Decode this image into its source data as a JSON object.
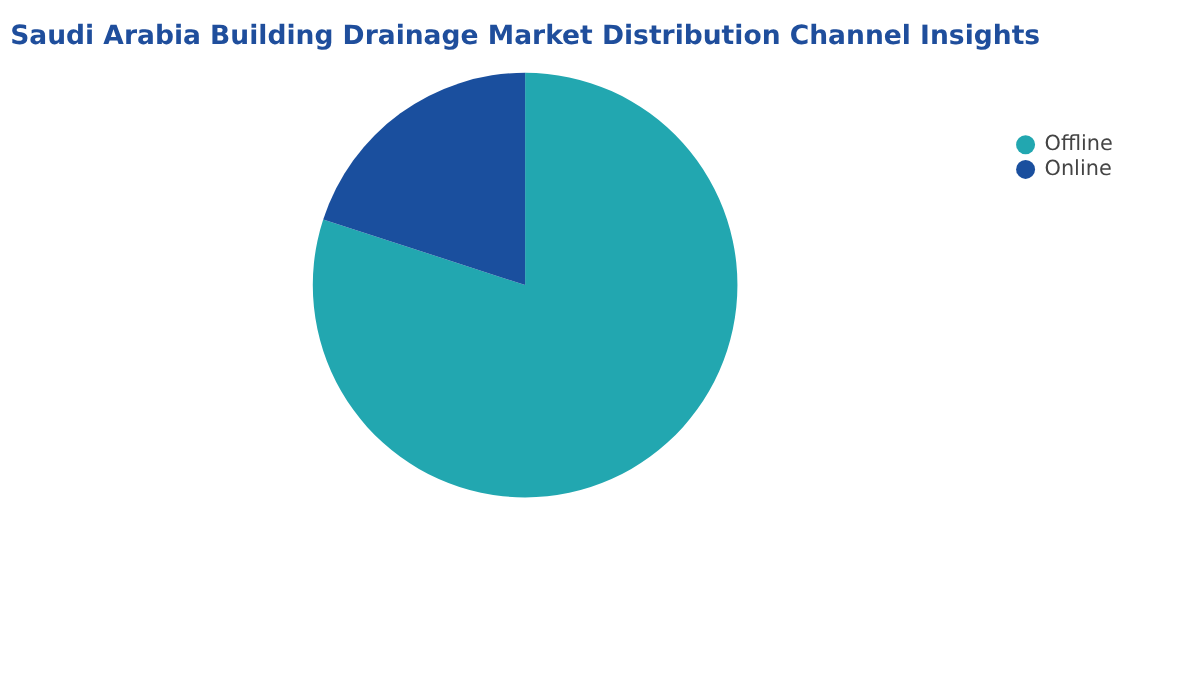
{
  "chart_data": {
    "type": "pie",
    "title": "Saudi Arabia Building Drainage Market Distribution Channel Insights",
    "categories": [
      "Offline",
      "Online"
    ],
    "values": [
      80,
      20
    ],
    "colors": [
      "#22a7b0",
      "#1a4f9e"
    ],
    "legend": "right"
  }
}
